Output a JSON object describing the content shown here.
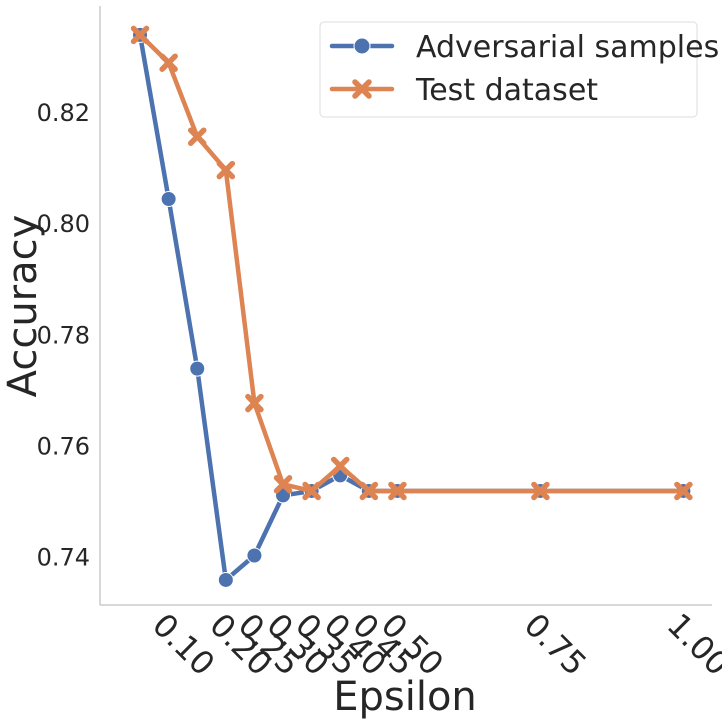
{
  "chart_data": {
    "type": "line",
    "xlabel": "Epsilon",
    "ylabel": "Accuracy",
    "x": [
      0.05,
      0.1,
      0.15,
      0.2,
      0.25,
      0.3,
      0.35,
      0.4,
      0.45,
      0.5,
      0.75,
      1.0
    ],
    "x_tick_labels": [
      "0.10",
      "0.20",
      "0.25",
      "0.30",
      "0.35",
      "0.40",
      "0.45",
      "0.50",
      "0.75",
      "1.00"
    ],
    "x_tick_values": [
      0.1,
      0.2,
      0.25,
      0.3,
      0.35,
      0.4,
      0.45,
      0.5,
      0.75,
      1.0
    ],
    "y_tick_labels": [
      "0.74",
      "0.76",
      "0.78",
      "0.80",
      "0.82"
    ],
    "y_tick_values": [
      0.74,
      0.76,
      0.78,
      0.8,
      0.82
    ],
    "xlim": [
      -0.02,
      1.05
    ],
    "ylim": [
      0.7315,
      0.8392
    ],
    "grid": false,
    "legend_position": "top-right",
    "series": [
      {
        "name": "Adversarial samples",
        "color": "#4c72b0",
        "marker": "circle",
        "values": [
          0.834,
          0.8045,
          0.774,
          0.736,
          0.7404,
          0.7512,
          0.752,
          0.7548,
          0.752,
          0.752,
          0.752,
          0.752
        ]
      },
      {
        "name": "Test dataset",
        "color": "#dd8452",
        "marker": "x",
        "values": [
          0.834,
          0.829,
          0.8157,
          0.8097,
          0.7678,
          0.7532,
          0.752,
          0.7565,
          0.752,
          0.752,
          0.752,
          0.752
        ]
      }
    ]
  }
}
